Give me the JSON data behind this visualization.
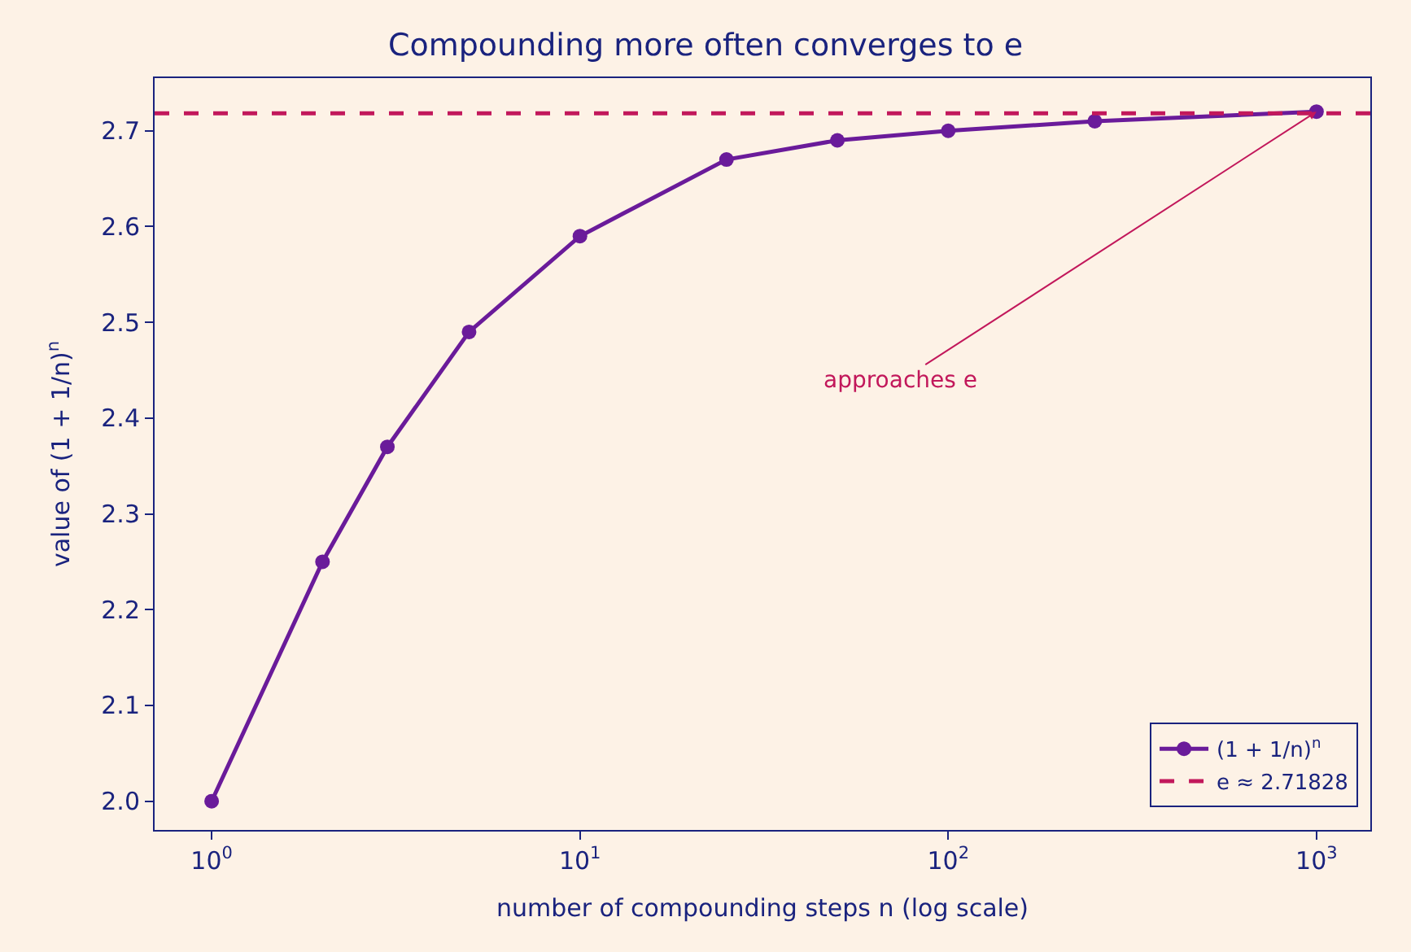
{
  "chart_data": {
    "type": "line",
    "title": "Compounding more often converges to e",
    "xlabel": "number of compounding steps n (log scale)",
    "ylabel": "value of (1 + 1/n)$^{n}$",
    "x": [
      1,
      2,
      3,
      5,
      10,
      25,
      50,
      100,
      250,
      1000
    ],
    "series": [
      {
        "name": "(1 + 1/n)$^{n}$",
        "color": "#6a1b9a",
        "values": [
          2.0,
          2.25,
          2.37,
          2.49,
          2.59,
          2.67,
          2.69,
          2.7,
          2.71,
          2.72
        ]
      }
    ],
    "ref_lines": [
      {
        "axis": "y",
        "value": 2.71828,
        "label": "e ≈ 2.71828",
        "color": "#c2185b",
        "line_style": "dashed"
      }
    ],
    "annotations": [
      {
        "text": "approaches e",
        "x": 1000,
        "y": 2.72
      }
    ],
    "log": "x",
    "xlim": [
      0.7,
      1400
    ],
    "xticks": [
      {
        "value": 1,
        "label": "10$^{0}$"
      },
      {
        "value": 10,
        "label": "10$^{1}$"
      },
      {
        "value": 100,
        "label": "10$^{2}$"
      },
      {
        "value": 1000,
        "label": "10$^{3}$"
      }
    ],
    "ylim": [
      1.97,
      2.755
    ],
    "yticks": [
      {
        "value": 2.0,
        "label": "2.0"
      },
      {
        "value": 2.1,
        "label": "2.1"
      },
      {
        "value": 2.2,
        "label": "2.2"
      },
      {
        "value": 2.3,
        "label": "2.3"
      },
      {
        "value": 2.4,
        "label": "2.4"
      },
      {
        "value": 2.5,
        "label": "2.5"
      },
      {
        "value": 2.6,
        "label": "2.6"
      },
      {
        "value": 2.7,
        "label": "2.7"
      }
    ],
    "marker": "circle",
    "line_style": "solid",
    "grid": false,
    "legend": "bottom right"
  }
}
